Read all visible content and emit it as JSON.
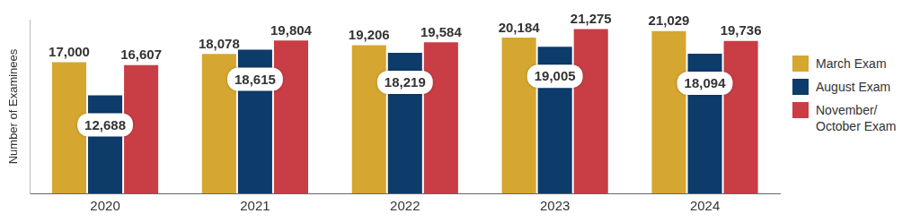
{
  "chart_data": {
    "type": "bar",
    "y_label": "Number of Examinees",
    "categories": [
      "2020",
      "2021",
      "2022",
      "2023",
      "2024"
    ],
    "series": [
      {
        "name": "March Exam",
        "color": "#d5a630",
        "values": [
          17000,
          18078,
          19206,
          20184,
          21029
        ],
        "value_labels": [
          "17,000",
          "18,078",
          "19,206",
          "20,184",
          "21,029"
        ]
      },
      {
        "name": "August Exam",
        "color": "#0d3b6a",
        "values": [
          12688,
          18615,
          18219,
          19005,
          18094
        ],
        "value_labels": [
          "12,688",
          "18,615",
          "18,219",
          "19,005",
          "18,094"
        ]
      },
      {
        "name": "November/October Exam",
        "color": "#c93d44",
        "values": [
          16607,
          19804,
          19584,
          21275,
          19736
        ],
        "value_labels": [
          "16,607",
          "19,804",
          "19,584",
          "21,275",
          "19,736"
        ]
      }
    ],
    "ylim": [
      0,
      22500
    ],
    "yticks": [],
    "grid": false,
    "legend": "right",
    "data_labels": true,
    "tick_labels": "x"
  }
}
